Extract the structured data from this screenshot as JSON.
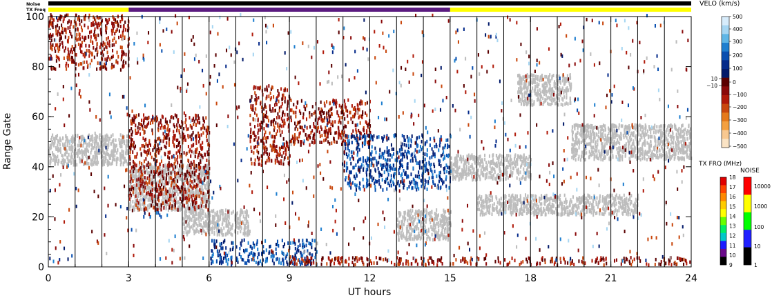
{
  "chart_data": {
    "type": "heatmap",
    "title": "",
    "xlabel": "UT hours",
    "ylabel": "Range Gate",
    "xlim": [
      0,
      24
    ],
    "ylim": [
      0,
      100
    ],
    "xticks": [
      "0",
      "3",
      "6",
      "9",
      "12",
      "15",
      "18",
      "21",
      "24"
    ],
    "yticks": [
      "0",
      "20",
      "40",
      "60",
      "80",
      "100"
    ],
    "scan_boundaries_ut": [
      1,
      2,
      3,
      4,
      5,
      6,
      7,
      8,
      9,
      10,
      11,
      12,
      13,
      14,
      15,
      16,
      17,
      18,
      19,
      20,
      21,
      22,
      23
    ],
    "top_bars": {
      "noise_label": "Noise",
      "txfreq_label": "TX Freq",
      "noise_color": "#000000",
      "txfreq_segments": [
        {
          "start": 0,
          "end": 3,
          "color": "#ffff00"
        },
        {
          "start": 3,
          "end": 15,
          "color": "#5a1a80"
        },
        {
          "start": 15,
          "end": 24,
          "color": "#ffff00"
        }
      ]
    },
    "ground_scatter_color": "#bdbdbd",
    "echo_regions": [
      {
        "kind": "ground_scatter",
        "t0": 0,
        "t1": 3,
        "r0": 40,
        "r1": 52
      },
      {
        "kind": "ground_scatter",
        "t0": 3,
        "t1": 6,
        "r0": 22,
        "r1": 40
      },
      {
        "kind": "ground_scatter",
        "t0": 5,
        "t1": 7.5,
        "r0": 12,
        "r1": 22
      },
      {
        "kind": "ground_scatter",
        "t0": 15,
        "t1": 18,
        "r0": 34,
        "r1": 44
      },
      {
        "kind": "ground_scatter",
        "t0": 13,
        "t1": 15,
        "r0": 10,
        "r1": 22
      },
      {
        "kind": "ground_scatter",
        "t0": 19.5,
        "t1": 24,
        "r0": 42,
        "r1": 56
      },
      {
        "kind": "ground_scatter",
        "t0": 16,
        "t1": 22,
        "r0": 20,
        "r1": 28
      },
      {
        "kind": "ground_scatter",
        "t0": 17.5,
        "t1": 19.5,
        "r0": 64,
        "r1": 76
      },
      {
        "kind": "negative_velocity",
        "t0": 3,
        "t1": 6,
        "r0": 22,
        "r1": 60
      },
      {
        "kind": "negative_velocity",
        "t0": 7.5,
        "t1": 9,
        "r0": 40,
        "r1": 72
      },
      {
        "kind": "negative_velocity",
        "t0": 9,
        "t1": 12,
        "r0": 48,
        "r1": 66
      },
      {
        "kind": "negative_velocity",
        "t0": 0,
        "t1": 3,
        "r0": 78,
        "r1": 100
      },
      {
        "kind": "positive_velocity",
        "t0": 6,
        "t1": 10,
        "r0": 0,
        "r1": 10
      },
      {
        "kind": "positive_velocity",
        "t0": 11,
        "t1": 15,
        "r0": 30,
        "r1": 52
      },
      {
        "kind": "positive_velocity",
        "t0": 3.5,
        "t1": 4.2,
        "r0": 19,
        "r1": 21
      },
      {
        "kind": "negative_velocity",
        "t0": 9,
        "t1": 24,
        "r0": 0,
        "r1": 3
      }
    ],
    "velocity_colorbar": {
      "label": "VELO (km/s)",
      "tick_labels": [
        "500",
        "400",
        "300",
        "200",
        "100",
        "10",
        "0",
        "−10",
        "−100",
        "−200",
        "−300",
        "−400",
        "−500"
      ],
      "colors": [
        "#d7ecfb",
        "#a6d6f2",
        "#5fb6e6",
        "#1f7fcf",
        "#0a4fb0",
        "#052a8a",
        "#021a6a",
        "#5a0000",
        "#8a0a0a",
        "#b01a0a",
        "#c9480e",
        "#e57a1c",
        "#f4a040",
        "#f8c890",
        "#fae3c4"
      ]
    },
    "txfreq_colorbar": {
      "label": "TX FRQ (MHz)",
      "tick_labels": [
        "18",
        "17",
        "16",
        "15",
        "14",
        "13",
        "12",
        "11",
        "10",
        "9"
      ],
      "colors": [
        "#e00000",
        "#ff4400",
        "#ff8800",
        "#ffcc00",
        "#ffff00",
        "#66ff00",
        "#00ee66",
        "#00c8c8",
        "#1a1aff",
        "#6a0a8a",
        "#000000"
      ]
    },
    "noise_colorbar": {
      "label": "NOISE",
      "tick_labels": [
        "10000",
        "1000",
        "100",
        "10",
        "1"
      ],
      "colors": [
        "#ff0000",
        "#ffff00",
        "#00ff00",
        "#2020ff",
        "#000000"
      ]
    }
  }
}
